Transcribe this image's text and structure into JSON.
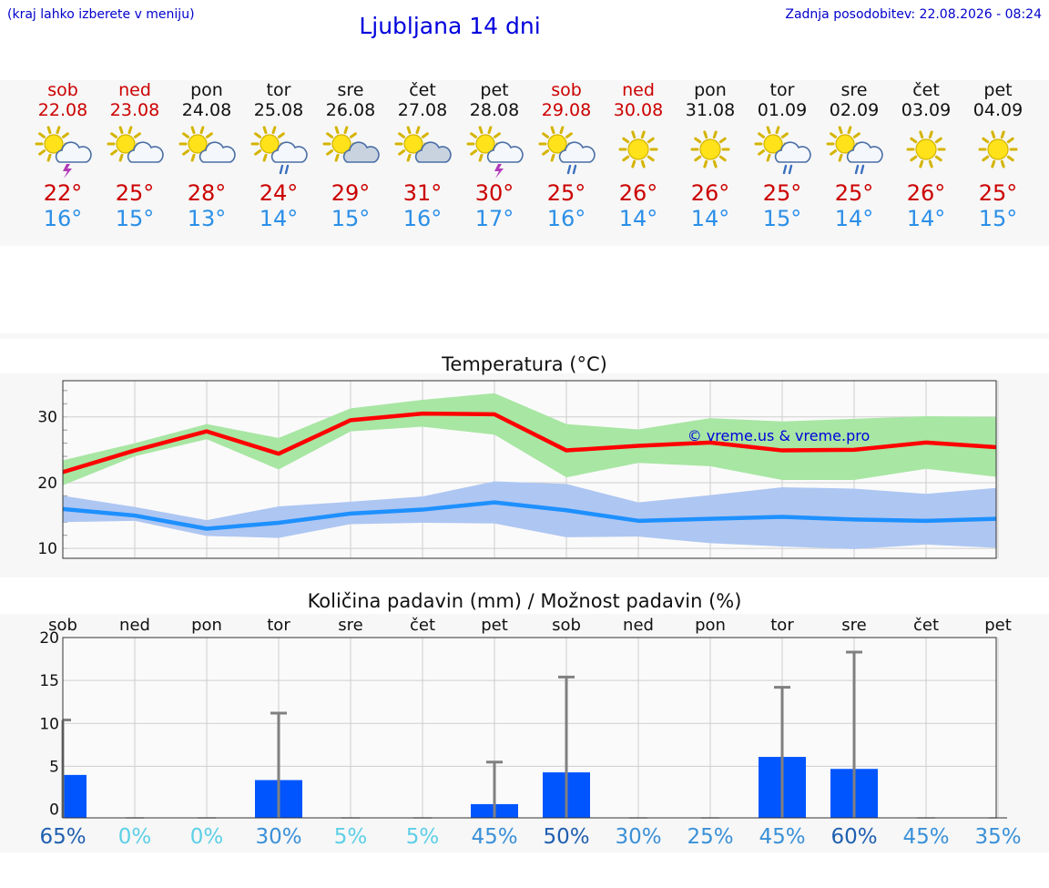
{
  "header": {
    "menu_hint": "(kraj lahko izberete v meniju)",
    "title": "Ljubljana 14 dni",
    "updated": "Zadnja posodobitev: 22.08.2026 - 08:24"
  },
  "days": [
    {
      "name": "sob",
      "date": "22.08",
      "icon": "sun-cloud-storm-icon",
      "max": "22°",
      "min": "16°",
      "weekend": true
    },
    {
      "name": "ned",
      "date": "23.08",
      "icon": "sun-cloud-icon",
      "max": "25°",
      "min": "15°",
      "weekend": true
    },
    {
      "name": "pon",
      "date": "24.08",
      "icon": "sun-cloud-icon",
      "max": "28°",
      "min": "13°",
      "weekend": false
    },
    {
      "name": "tor",
      "date": "25.08",
      "icon": "sun-cloud-rain-icon",
      "max": "24°",
      "min": "14°",
      "weekend": false
    },
    {
      "name": "sre",
      "date": "26.08",
      "icon": "sun-gray-cloud-icon",
      "max": "29°",
      "min": "15°",
      "weekend": false
    },
    {
      "name": "čet",
      "date": "27.08",
      "icon": "sun-gray-cloud-icon",
      "max": "31°",
      "min": "16°",
      "weekend": false
    },
    {
      "name": "pet",
      "date": "28.08",
      "icon": "sun-cloud-storm-icon",
      "max": "30°",
      "min": "17°",
      "weekend": false
    },
    {
      "name": "sob",
      "date": "29.08",
      "icon": "sun-cloud-rain-icon",
      "max": "25°",
      "min": "16°",
      "weekend": true
    },
    {
      "name": "ned",
      "date": "30.08",
      "icon": "sun-icon",
      "max": "26°",
      "min": "14°",
      "weekend": true
    },
    {
      "name": "pon",
      "date": "31.08",
      "icon": "sun-icon",
      "max": "26°",
      "min": "14°",
      "weekend": false
    },
    {
      "name": "tor",
      "date": "01.09",
      "icon": "sun-cloud-rain-icon",
      "max": "25°",
      "min": "15°",
      "weekend": false
    },
    {
      "name": "sre",
      "date": "02.09",
      "icon": "sun-cloud-rain-icon",
      "max": "25°",
      "min": "14°",
      "weekend": false
    },
    {
      "name": "čet",
      "date": "03.09",
      "icon": "sun-icon",
      "max": "26°",
      "min": "14°",
      "weekend": false
    },
    {
      "name": "pet",
      "date": "04.09",
      "icon": "sun-icon",
      "max": "25°",
      "min": "15°",
      "weekend": false
    }
  ],
  "chart_data": [
    {
      "type": "line",
      "title": "Temperatura (°C)",
      "watermark": "© vreme.us & vreme.pro",
      "ylim": [
        8.5,
        35.5
      ],
      "yticks": [
        10,
        20,
        30
      ],
      "grid": true,
      "x": [
        "22.08",
        "23.08",
        "24.08",
        "25.08",
        "26.08",
        "27.08",
        "28.08",
        "29.08",
        "30.08",
        "31.08",
        "01.09",
        "02.09",
        "03.09",
        "04.09"
      ],
      "series": [
        {
          "values": [
            21.6,
            24.9,
            27.8,
            24.4,
            29.5,
            30.5,
            30.4,
            24.9,
            25.6,
            26.1,
            24.9,
            25.0,
            26.1,
            25.4
          ],
          "band_low": [
            19.6,
            24.0,
            26.6,
            22.0,
            27.8,
            28.5,
            27.3,
            20.8,
            23.0,
            22.5,
            20.4,
            20.4,
            22.1,
            20.9
          ],
          "band_high": [
            23.4,
            26.0,
            28.9,
            26.8,
            31.3,
            32.6,
            33.6,
            28.9,
            28.1,
            29.8,
            29.3,
            29.7,
            30.1,
            30.0
          ],
          "line_color": "#ff0000",
          "band_color": "#a8e6a3"
        },
        {
          "values": [
            16.0,
            15.0,
            13.0,
            13.9,
            15.3,
            15.9,
            17.0,
            15.8,
            14.2,
            14.5,
            14.8,
            14.4,
            14.2,
            14.5
          ],
          "band_low": [
            14.0,
            14.2,
            11.9,
            11.6,
            13.7,
            13.9,
            13.8,
            11.7,
            11.8,
            10.8,
            10.3,
            9.9,
            10.6,
            10.1
          ],
          "band_high": [
            18.0,
            16.3,
            14.3,
            16.4,
            17.1,
            17.9,
            20.2,
            19.8,
            17.0,
            18.1,
            19.3,
            19.1,
            18.3,
            19.2
          ],
          "line_color": "#1e90ff",
          "band_color": "#aec6f2"
        }
      ]
    },
    {
      "type": "bar",
      "title": "Količina padavin (mm) / Možnost padavin (%)",
      "ylim": [
        -1,
        20
      ],
      "yticks": [
        0,
        5,
        10,
        15,
        20
      ],
      "grid": true,
      "categories": [
        "sob",
        "ned",
        "pon",
        "tor",
        "sre",
        "čet",
        "pet",
        "sob",
        "ned",
        "pon",
        "tor",
        "sre",
        "čet",
        "pet"
      ],
      "values": [
        4.0,
        0,
        0,
        3.4,
        0,
        0,
        0.6,
        4.3,
        0,
        0,
        6.1,
        4.7,
        0,
        0
      ],
      "error_high": [
        10.4,
        0,
        0,
        11.2,
        0,
        0,
        5.5,
        15.4,
        0,
        0,
        14.2,
        18.3,
        0,
        0
      ],
      "probability": [
        "65%",
        "0%",
        "0%",
        "30%",
        "5%",
        "5%",
        "45%",
        "50%",
        "30%",
        "25%",
        "45%",
        "60%",
        "45%",
        "35%"
      ],
      "bar_color": "#0055ff",
      "error_color": "#808080"
    }
  ]
}
